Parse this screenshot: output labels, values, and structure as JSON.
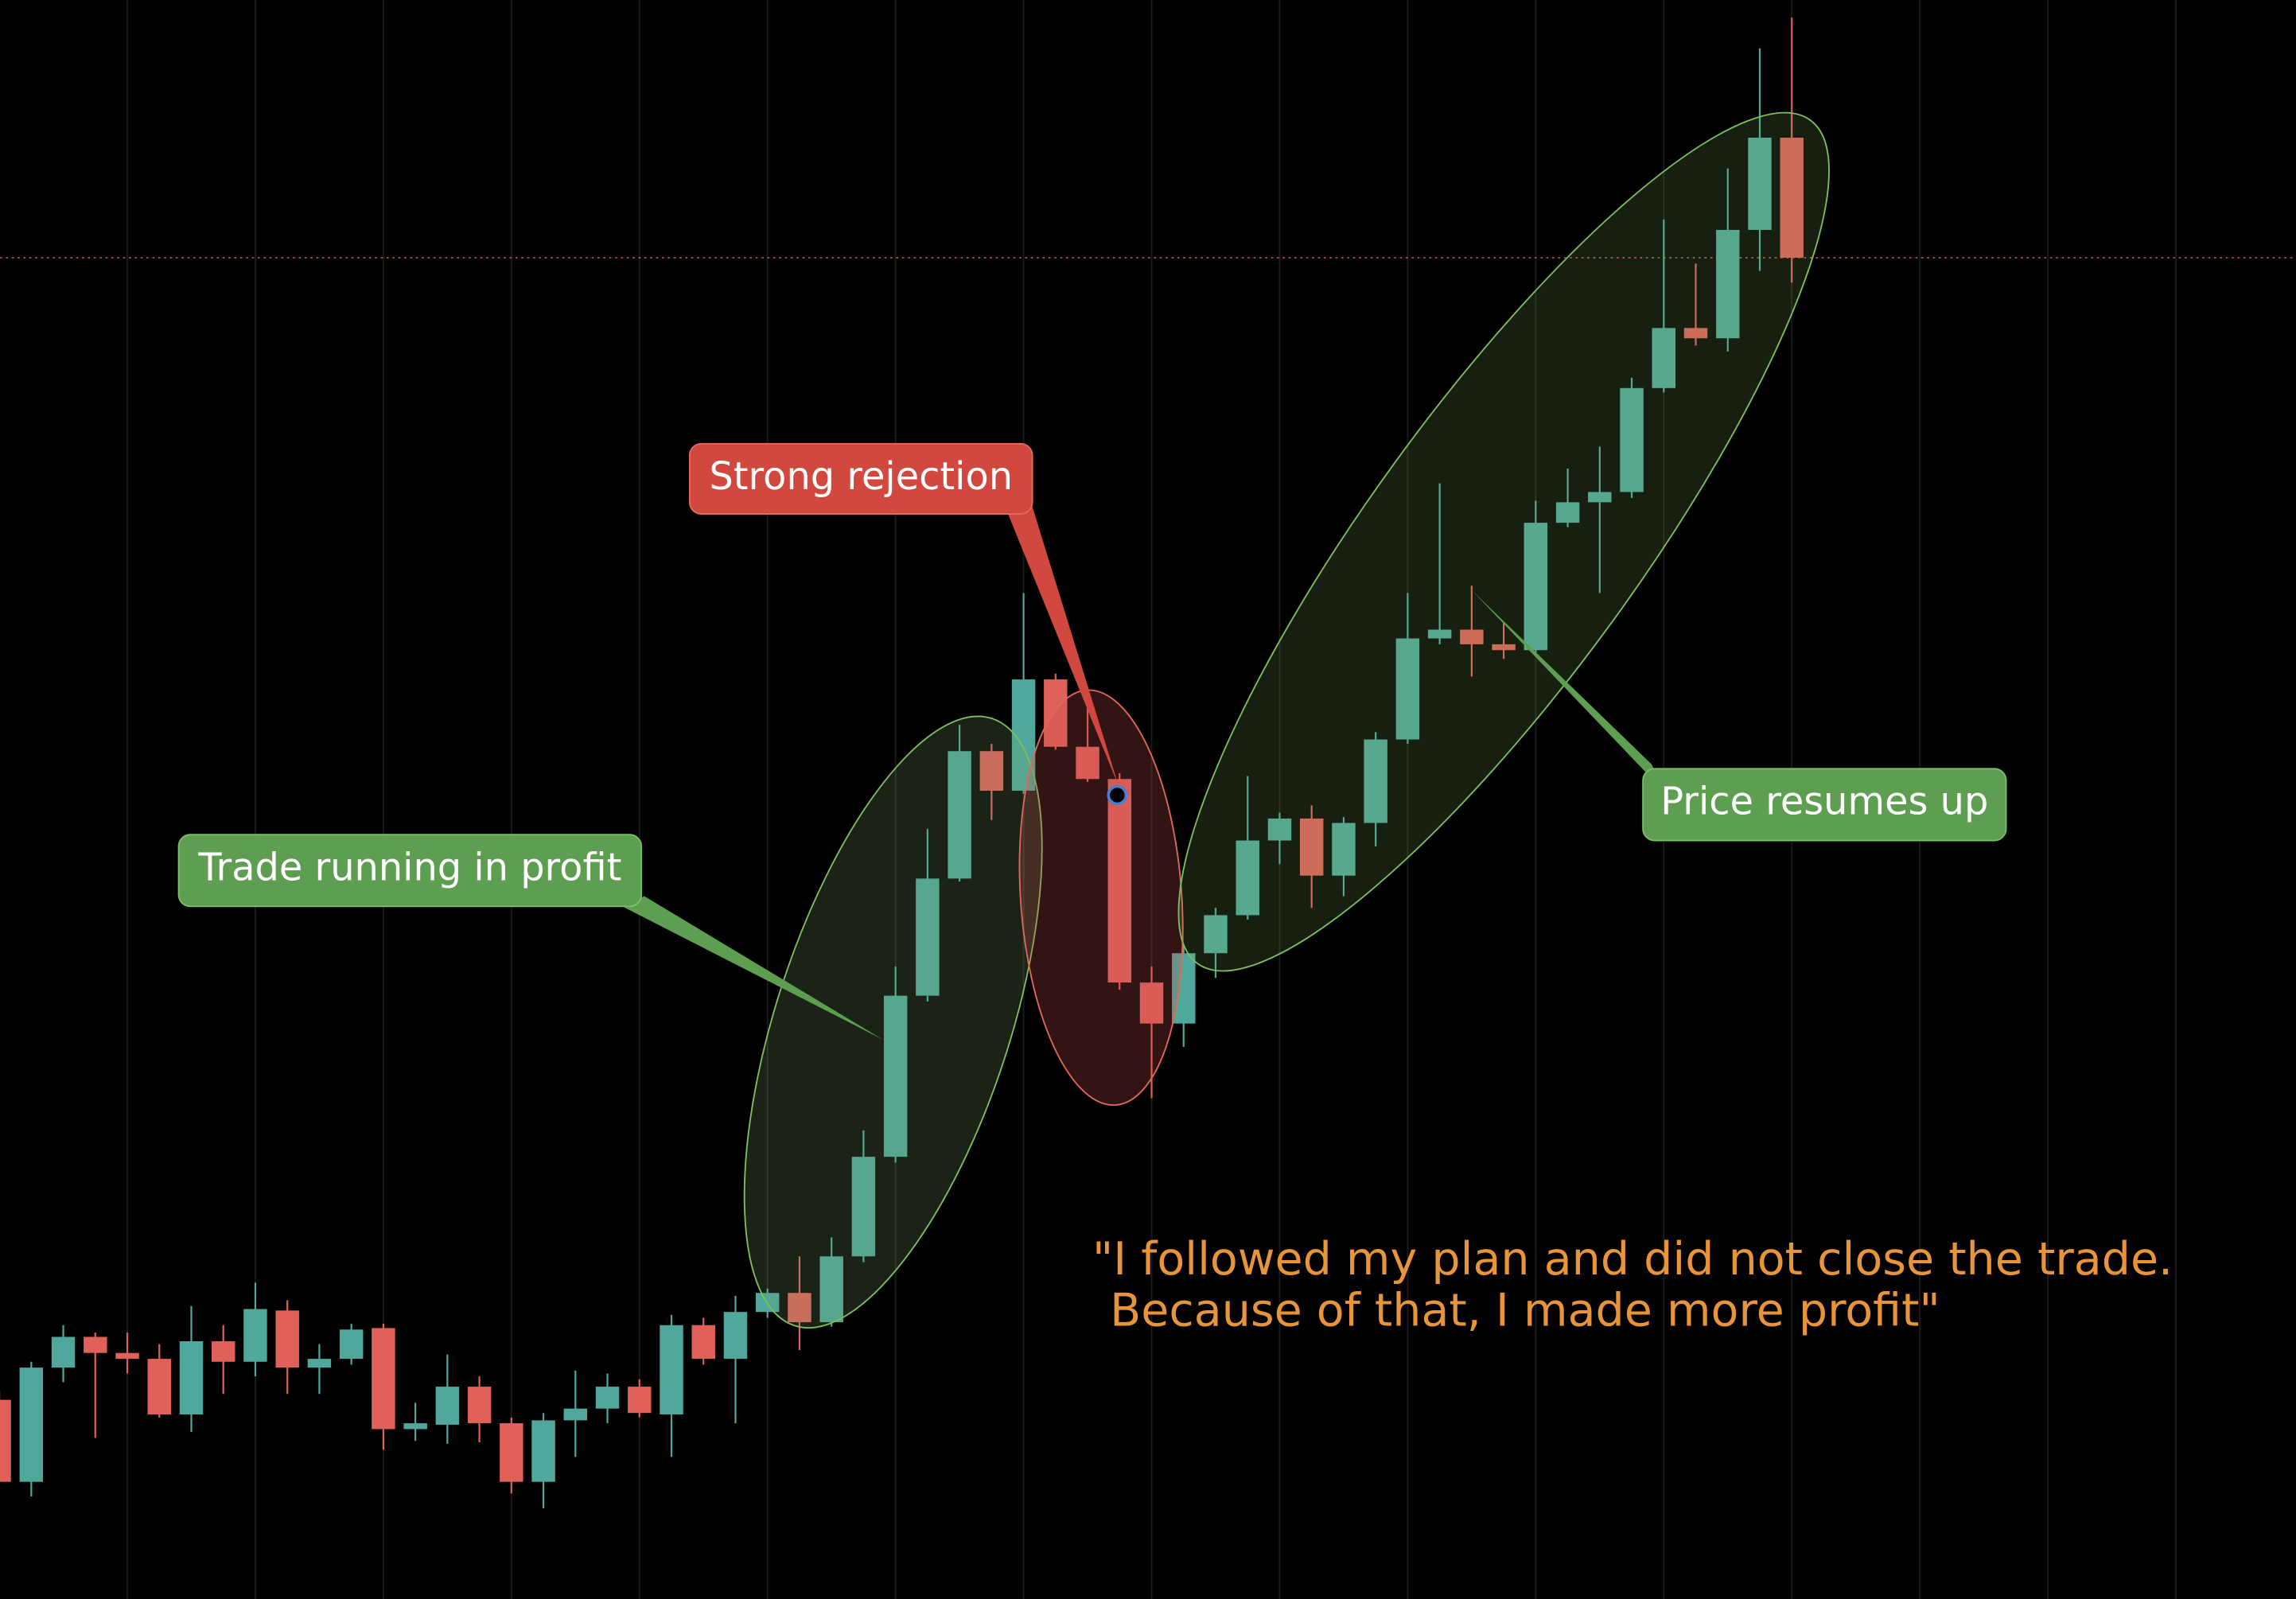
{
  "chart_data": {
    "type": "candlestick",
    "ylim": [
      0,
      1092
    ],
    "grid": true,
    "up_color": "#4fa89b",
    "down_color": "#e0605a",
    "open": [
      136,
      80,
      158,
      179,
      168,
      164,
      126,
      176,
      162,
      197,
      158,
      164,
      185,
      116,
      119,
      145,
      120,
      80,
      122,
      130,
      145,
      126,
      187,
      164,
      196,
      209,
      189,
      234,
      302,
      412,
      492,
      579,
      552,
      628,
      582,
      560,
      421,
      393,
      441,
      467,
      518,
      533,
      494,
      530,
      587,
      656,
      662,
      652,
      648,
      735,
      749,
      756,
      827,
      868,
      861,
      935,
      998
    ],
    "high": [
      142,
      162,
      187,
      182,
      182,
      174,
      200,
      187,
      216,
      204,
      174,
      188,
      188,
      134,
      167,
      152,
      124,
      127,
      156,
      154,
      150,
      194,
      192,
      207,
      212,
      234,
      247,
      320,
      432,
      526,
      597,
      584,
      687,
      632,
      610,
      564,
      432,
      447,
      472,
      562,
      537,
      542,
      534,
      592,
      687,
      762,
      692,
      667,
      750,
      772,
      787,
      834,
      942,
      912,
      977,
      1059,
      1080
    ],
    "low": [
      80,
      70,
      148,
      110,
      154,
      124,
      114,
      140,
      152,
      140,
      140,
      160,
      102,
      108,
      106,
      107,
      72,
      62,
      97,
      120,
      124,
      97,
      160,
      120,
      192,
      170,
      186,
      230,
      298,
      408,
      490,
      532,
      550,
      580,
      558,
      416,
      342,
      377,
      424,
      464,
      502,
      472,
      480,
      514,
      584,
      652,
      630,
      642,
      644,
      732,
      687,
      752,
      824,
      856,
      852,
      907,
      899
    ],
    "close": [
      80,
      158,
      179,
      168,
      164,
      126,
      176,
      162,
      198,
      158,
      164,
      184,
      116,
      120,
      145,
      120,
      80,
      122,
      130,
      145,
      127,
      187,
      164,
      196,
      209,
      189,
      234,
      302,
      412,
      492,
      579,
      552,
      628,
      582,
      560,
      421,
      393,
      441,
      467,
      518,
      533,
      494,
      530,
      587,
      656,
      662,
      652,
      648,
      735,
      749,
      756,
      827,
      868,
      861,
      935,
      998,
      916
    ],
    "price_line": 916,
    "annotations": [
      {
        "text": "Trade running in profit"
      },
      {
        "text": "Strong rejection"
      },
      {
        "text": "Price resumes up"
      }
    ],
    "quote": [
      "\"I followed my plan and did not close the trade.",
      "Because of that, I made more profit\""
    ]
  }
}
